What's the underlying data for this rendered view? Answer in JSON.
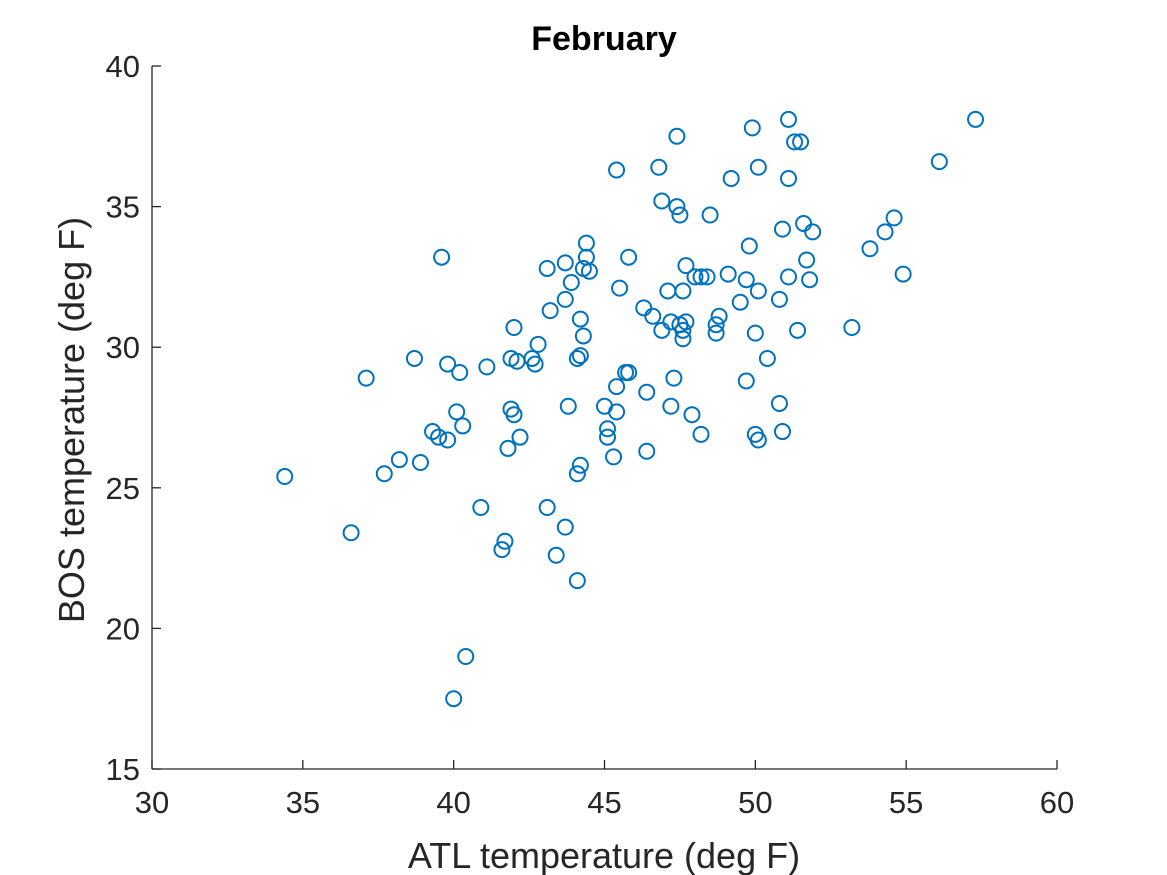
{
  "chart_data": {
    "type": "scatter",
    "title": "February",
    "xlabel": "ATL temperature (deg F)",
    "ylabel": "BOS temperature (deg F)",
    "xlim": [
      30,
      60
    ],
    "ylim": [
      15,
      40
    ],
    "xticks": [
      30,
      35,
      40,
      45,
      50,
      55,
      60
    ],
    "yticks": [
      15,
      20,
      25,
      30,
      35,
      40
    ],
    "grid": false,
    "marker": "circle-open",
    "color": "#0072BD",
    "series": [
      {
        "x": [
          34.4,
          36.6,
          37.1,
          37.7,
          38.2,
          38.7,
          38.9,
          39.3,
          39.5,
          39.6,
          39.8,
          39.8,
          40.0,
          40.1,
          40.2,
          40.3,
          40.4,
          40.9,
          41.1,
          41.6,
          41.7,
          41.8,
          41.9,
          41.9,
          42.0,
          42.0,
          42.1,
          42.2,
          42.6,
          42.7,
          42.8,
          43.1,
          43.1,
          43.2,
          43.4,
          43.7,
          43.7,
          43.7,
          43.8,
          43.9,
          44.1,
          44.1,
          44.1,
          44.2,
          44.2,
          44.2,
          44.3,
          44.3,
          44.4,
          44.4,
          44.5,
          45.0,
          45.1,
          45.1,
          45.3,
          45.4,
          45.4,
          45.4,
          45.5,
          45.7,
          45.8,
          45.8,
          46.3,
          46.4,
          46.4,
          46.6,
          46.8,
          46.9,
          46.9,
          47.1,
          47.2,
          47.2,
          47.3,
          47.4,
          47.4,
          47.5,
          47.5,
          47.6,
          47.6,
          47.6,
          47.7,
          47.7,
          47.9,
          48.0,
          48.2,
          48.2,
          48.4,
          48.5,
          48.7,
          48.7,
          48.8,
          49.1,
          49.2,
          49.5,
          49.7,
          49.7,
          49.8,
          49.9,
          50.0,
          50.0,
          50.1,
          50.1,
          50.1,
          50.4,
          50.8,
          50.8,
          50.9,
          50.9,
          51.1,
          51.1,
          51.1,
          51.3,
          51.4,
          51.5,
          51.6,
          51.7,
          51.8,
          51.9,
          53.2,
          53.8,
          54.3,
          54.6,
          54.9,
          56.1,
          57.3
        ],
        "y": [
          25.4,
          23.4,
          28.9,
          25.5,
          26.0,
          29.6,
          25.9,
          27.0,
          26.8,
          33.2,
          26.7,
          29.4,
          17.5,
          27.7,
          29.1,
          27.2,
          19.0,
          24.3,
          29.3,
          22.8,
          23.1,
          26.4,
          27.8,
          29.6,
          27.6,
          30.7,
          29.5,
          26.8,
          29.6,
          29.4,
          30.1,
          24.3,
          32.8,
          31.3,
          22.6,
          23.6,
          31.7,
          33.0,
          27.9,
          32.3,
          21.7,
          25.5,
          29.6,
          25.8,
          29.7,
          31.0,
          30.4,
          32.8,
          33.7,
          33.2,
          32.7,
          27.9,
          26.8,
          27.1,
          26.1,
          28.6,
          27.7,
          36.3,
          32.1,
          29.1,
          29.1,
          33.2,
          31.4,
          26.3,
          28.4,
          31.1,
          36.4,
          30.6,
          35.2,
          32.0,
          27.9,
          30.9,
          28.9,
          37.5,
          35.0,
          34.7,
          30.8,
          30.6,
          30.3,
          32.0,
          32.9,
          30.9,
          27.6,
          32.5,
          32.5,
          26.9,
          32.5,
          34.7,
          30.5,
          30.8,
          31.1,
          32.6,
          36.0,
          31.6,
          32.4,
          28.8,
          33.6,
          37.8,
          26.9,
          30.5,
          26.7,
          32.0,
          36.4,
          29.6,
          31.7,
          28.0,
          34.2,
          27.0,
          36.0,
          38.1,
          32.5,
          37.3,
          30.6,
          37.3,
          34.4,
          33.1,
          32.4,
          34.1,
          30.7,
          33.5,
          34.1,
          34.6,
          32.6,
          36.6,
          38.1
        ]
      }
    ]
  }
}
